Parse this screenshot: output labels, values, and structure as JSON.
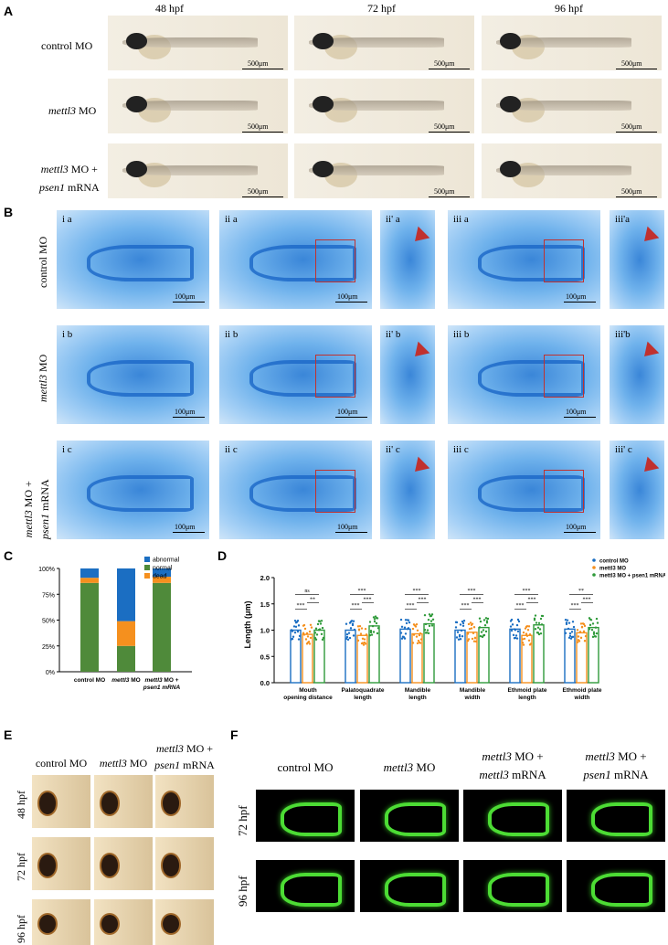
{
  "panel_a": {
    "label": "A",
    "columns": [
      "48 hpf",
      "72 hpf",
      "96 hpf"
    ],
    "rows": [
      {
        "prefix": "control MO",
        "suffix": "",
        "line2": ""
      },
      {
        "prefix": "mettl3",
        "suffix": " MO",
        "line2": ""
      },
      {
        "prefix": "mettl3",
        "suffix": " MO +",
        "line2_it": "psen1",
        "line2": " mRNA"
      }
    ],
    "scale": "500μm"
  },
  "panel_b": {
    "label": "B",
    "rows": [
      "control MO",
      "mettl3 MO",
      "mettl3 MO + psen1 mRNA"
    ],
    "row_labels": [
      {
        "it": "",
        "rest": "control MO",
        "l2it": "",
        "l2": ""
      },
      {
        "it": "mettl3",
        "rest": " MO",
        "l2it": "",
        "l2": ""
      },
      {
        "it": "mettl3",
        "rest": " MO +",
        "l2it": "psen1",
        "l2": " mRNA"
      }
    ],
    "sublabels": [
      [
        "i a",
        "ii a",
        "ii' a",
        "iii a",
        "iii'a"
      ],
      [
        "i b",
        "ii b",
        "ii' b",
        "iii b",
        "iii'b"
      ],
      [
        "i c",
        "ii c",
        "ii' c",
        "iii c",
        "iii' c"
      ]
    ],
    "scale": "100μm"
  },
  "panel_c": {
    "label": "C",
    "chart_data": {
      "type": "bar",
      "stacked": true,
      "categories": [
        "control MO",
        "mettl3 MO",
        "mettl3 MO + psen1 mRNA"
      ],
      "series": [
        {
          "name": "normal",
          "values": [
            86,
            25,
            86
          ]
        },
        {
          "name": "dead",
          "values": [
            5,
            24,
            6
          ]
        },
        {
          "name": "abnormal",
          "values": [
            9,
            51,
            8
          ]
        }
      ],
      "yticks": [
        "0%",
        "25%",
        "50%",
        "75%",
        "100%"
      ],
      "ylim": [
        0,
        100
      ],
      "legend": "top-right",
      "colors": {
        "normal": "#4f8a3a",
        "dead": "#f5901e",
        "abnormal": "#1b6ec2"
      }
    },
    "xlabels": [
      {
        "it": "",
        "rest": "control MO",
        "l2": ""
      },
      {
        "it": "mettl3",
        "rest": " MO",
        "l2": ""
      },
      {
        "it": "mettl3",
        "rest": " MO +",
        "l2": "psen1 mRNA"
      }
    ]
  },
  "panel_d": {
    "label": "D",
    "chart_data": {
      "type": "bar",
      "categories": [
        "Mouth opening distance",
        "Palatoquadrate length",
        "Mandible length",
        "Mandible width",
        "Ethmoid plate length",
        "Ethmoid plate width"
      ],
      "xlabel_lines": [
        [
          "Mouth",
          "opening distance"
        ],
        [
          "Palatoquadrate",
          "length"
        ],
        [
          "Mandible",
          "length"
        ],
        [
          "Mandible",
          "width"
        ],
        [
          "Ethmoid plate",
          "length"
        ],
        [
          "Ethmoid plate",
          "width"
        ]
      ],
      "series": [
        {
          "name": "control MO",
          "values": [
            1.0,
            1.0,
            1.02,
            1.0,
            1.02,
            1.02
          ]
        },
        {
          "name": "mettl3 MO",
          "values": [
            0.92,
            0.9,
            0.93,
            0.96,
            0.9,
            0.95
          ]
        },
        {
          "name": "mettl3 MO + psen1 mRNA",
          "values": [
            1.0,
            1.08,
            1.12,
            1.05,
            1.1,
            1.05
          ]
        }
      ],
      "ylabel": "Length (μm)",
      "yticks": [
        "0.0",
        "0.5",
        "1.0",
        "1.5",
        "2.0"
      ],
      "ylim": [
        0,
        2.0
      ],
      "significance": [
        {
          "top": "ns",
          "a": "***",
          "b": "**"
        },
        {
          "top": "***",
          "a": "***",
          "b": "***"
        },
        {
          "top": "***",
          "a": "***",
          "b": "***"
        },
        {
          "top": "***",
          "a": "***",
          "b": "***"
        },
        {
          "top": "***",
          "a": "***",
          "b": "***"
        },
        {
          "top": "**",
          "a": "***",
          "b": "***"
        }
      ],
      "legend": "top-right",
      "colors": {
        "control MO": "#1b6ec2",
        "mettl3 MO": "#f5901e",
        "mettl3 MO + psen1 mRNA": "#2f9a3a"
      }
    }
  },
  "panel_e": {
    "label": "E",
    "cols": [
      {
        "it": "",
        "rest": "control MO",
        "l2it": "",
        "l2": ""
      },
      {
        "it": "mettl3",
        "rest": " MO",
        "l2it": "",
        "l2": ""
      },
      {
        "it": "mettl3",
        "rest": " MO +",
        "l2it": "psen1",
        "l2": " mRNA"
      }
    ],
    "rows": [
      "48 hpf",
      "72 hpf",
      "96 hpf"
    ]
  },
  "panel_f": {
    "label": "F",
    "cols": [
      {
        "it": "",
        "rest": "control MO",
        "l2it": "",
        "l2": ""
      },
      {
        "it": "mettl3",
        "rest": " MO",
        "l2it": "",
        "l2": ""
      },
      {
        "it": "mettl3",
        "rest": " MO +",
        "l2it": "mettl3",
        "l2": " mRNA"
      },
      {
        "it": "mettl3",
        "rest": " MO +",
        "l2it": "psen1",
        "l2": " mRNA"
      }
    ],
    "rows": [
      "72 hpf",
      "96 hpf"
    ]
  }
}
